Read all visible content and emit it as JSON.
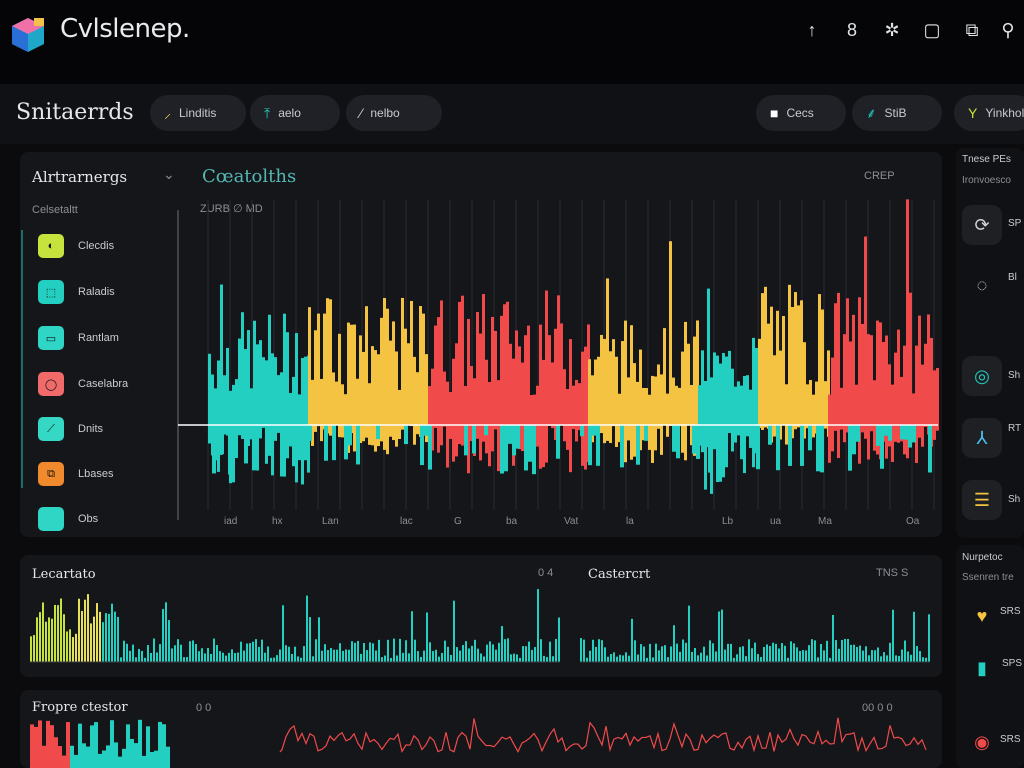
{
  "app": {
    "title": "Cvlsleneр."
  },
  "topbar": {
    "icons": [
      {
        "name": "upload-icon",
        "glyph": "↑"
      },
      {
        "name": "lock-icon",
        "glyph": "8"
      },
      {
        "name": "bug-icon",
        "glyph": "✲"
      },
      {
        "name": "window-icon",
        "glyph": "▢"
      },
      {
        "name": "export-icon",
        "glyph": "⧉"
      },
      {
        "name": "search-icon",
        "glyph": "⚲"
      }
    ]
  },
  "subbar": {
    "title": "Snitaerrds",
    "pills": [
      {
        "icon": "⸝",
        "label": "Linditis"
      },
      {
        "icon": "⤒",
        "label": "aelo"
      },
      {
        "icon": "⁄",
        "label": "nelbo"
      }
    ],
    "right_pills": [
      {
        "icon": "■",
        "label": "Cecs"
      },
      {
        "icon": "⸙",
        "label": "StiB"
      },
      {
        "icon": "Y",
        "label": "Yinkhol"
      }
    ]
  },
  "legend": {
    "title": "Alrtrarnergs",
    "subtitle": "Celsetaltt",
    "items": [
      {
        "label": "Clecdis",
        "color": "#c6e23c",
        "icon": "◐"
      },
      {
        "label": "Raladis",
        "color": "#23cfc0",
        "icon": "⬚"
      },
      {
        "label": "Rantlam",
        "color": "#2fd6c6",
        "icon": "▭"
      },
      {
        "label": "Caselabra",
        "color": "#f06a6a",
        "icon": "◯"
      },
      {
        "label": "Dnits",
        "color": "#34d8c5",
        "icon": "⟋"
      },
      {
        "label": "Lbases",
        "color": "#f08a2c",
        "icon": "⧉"
      },
      {
        "label": "Obs",
        "color": "#2fd6c6",
        "icon": ""
      }
    ]
  },
  "main_chart": {
    "title": "Cœatolths",
    "meta": "CREP",
    "subtitle": "ZURB ∅ MD",
    "x_labels": [
      "iad",
      "hx",
      "Lan",
      "lac",
      "G",
      "ba",
      "Vat",
      "la",
      "Lb",
      "ua",
      "Ma",
      "Oa"
    ]
  },
  "side": {
    "header": "Tnese PEs",
    "sub": "Ironvoesco",
    "items": [
      "SP",
      "Bl",
      "Sh",
      "RT",
      "Sh"
    ]
  },
  "mini1": {
    "title": "Lecartato",
    "meta": "0 4"
  },
  "mini2": {
    "title": "Castercrt",
    "meta": "TNS S"
  },
  "bottom": {
    "title": "Fropre ctestor",
    "meta": "0 0",
    "meta2": "00 0 0"
  },
  "side2": {
    "header": "Nurpetoc",
    "sub": "Ssenren tre",
    "items": [
      "SRS",
      "SPS",
      "SRS"
    ]
  },
  "chart_data": {
    "type": "bar",
    "series_colors": [
      "#23cfc0",
      "#f5c342",
      "#f04a4a",
      "#f5c342",
      "#23cfc0"
    ],
    "zero_line": "white",
    "x_labels": [
      "iad",
      "hx",
      "Lan",
      "lac",
      "G",
      "ba",
      "Vat",
      "la",
      "Lb",
      "ua",
      "Ma",
      "Oa"
    ]
  }
}
